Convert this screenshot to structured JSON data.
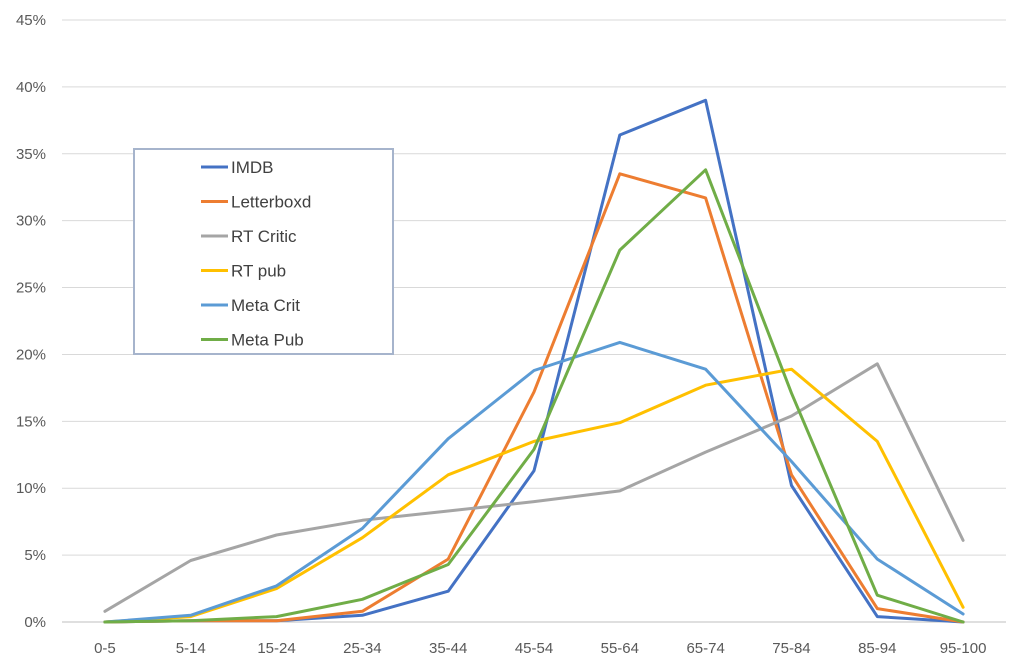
{
  "chart_data": {
    "type": "line",
    "title": "",
    "xlabel": "",
    "ylabel": "",
    "categories": [
      "0-5",
      "5-14",
      "15-24",
      "25-34",
      "35-44",
      "45-54",
      "55-64",
      "65-74",
      "75-84",
      "85-94",
      "95-100"
    ],
    "ylim": [
      0,
      45
    ],
    "yticks": [
      "0%",
      "5%",
      "10%",
      "15%",
      "20%",
      "25%",
      "30%",
      "35%",
      "40%",
      "45%"
    ],
    "ytick_values": [
      0,
      5,
      10,
      15,
      20,
      25,
      30,
      35,
      40,
      45
    ],
    "grid": "horizontal",
    "legend_placement": "left",
    "series": [
      {
        "name": "IMDB",
        "color": "#4472C4",
        "values": [
          0,
          0.1,
          0.1,
          0.5,
          2.3,
          11.3,
          36.4,
          39.0,
          10.2,
          0.4,
          0
        ]
      },
      {
        "name": "Letterboxd",
        "color": "#ED7D31",
        "values": [
          0,
          0.1,
          0.1,
          0.8,
          4.7,
          17.2,
          33.5,
          31.7,
          11.0,
          1.0,
          0
        ]
      },
      {
        "name": "RT Critic",
        "color": "#A5A5A5",
        "values": [
          0.8,
          4.6,
          6.5,
          7.6,
          8.3,
          9.0,
          9.8,
          12.7,
          15.4,
          19.3,
          6.1
        ]
      },
      {
        "name": "RT pub",
        "color": "#FFC000",
        "values": [
          0,
          0.4,
          2.5,
          6.3,
          11.0,
          13.5,
          14.9,
          17.7,
          18.9,
          13.5,
          1.1
        ]
      },
      {
        "name": "Meta Crit",
        "color": "#5B9BD5",
        "values": [
          0,
          0.5,
          2.7,
          7.0,
          13.7,
          18.8,
          20.9,
          18.9,
          12.0,
          4.7,
          0.6
        ]
      },
      {
        "name": "Meta Pub",
        "color": "#70AD47",
        "values": [
          0,
          0.1,
          0.4,
          1.7,
          4.3,
          12.9,
          27.8,
          33.8,
          17.1,
          2.0,
          0
        ]
      }
    ]
  }
}
